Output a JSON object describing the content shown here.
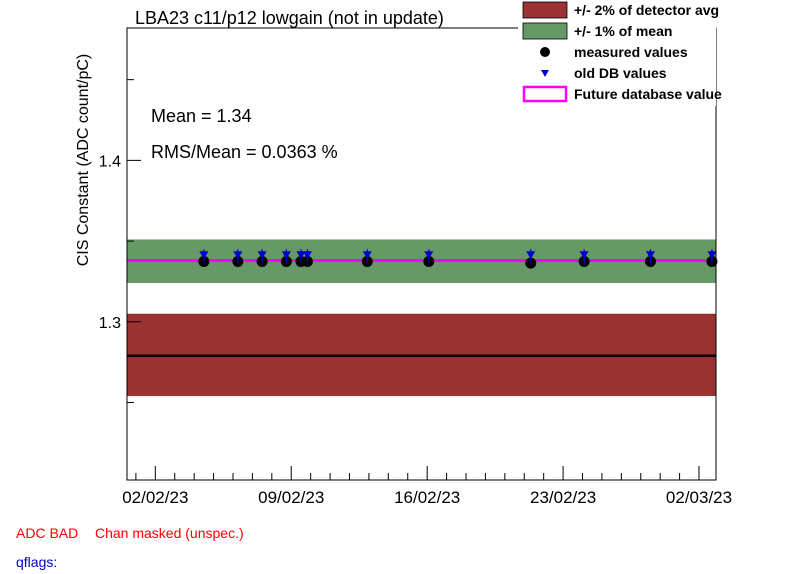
{
  "chart_data": {
    "type": "scatter",
    "title": "LBA23 c11/p12 lowgain (not in update)",
    "ylabel": "CIS Constant (ADC count/pC)",
    "xlabel": "",
    "xlim": [
      "2023-01-31T13:00",
      "2023-03-02T21:00"
    ],
    "ylim": [
      1.202,
      1.482
    ],
    "x_ticks": [
      "02/02/23",
      "09/02/23",
      "16/02/23",
      "23/02/23",
      "02/03/23"
    ],
    "x_tick_dates": [
      "2023-02-02",
      "2023-02-09",
      "2023-02-16",
      "2023-02-23",
      "2023-03-02"
    ],
    "y_ticks": [
      1.3,
      1.4
    ],
    "y_tick_labels": [
      "1.3",
      "1.4"
    ],
    "bands": [
      {
        "name": "+/- 2% of detector avg",
        "center": 1.279,
        "low": 1.254,
        "high": 1.305,
        "color": "#993333"
      },
      {
        "name": "+/- 1% of mean",
        "center": 1.338,
        "low": 1.324,
        "high": 1.351,
        "color": "#669966"
      }
    ],
    "series": [
      {
        "name": "measured values",
        "marker": "circle",
        "color": "#000000",
        "x": [
          "2023-02-04T12:00",
          "2023-02-06T06:00",
          "2023-02-07T12:00",
          "2023-02-08T18:00",
          "2023-02-09T12:00",
          "2023-02-09T20:00",
          "2023-02-12T22:00",
          "2023-02-16T02:00",
          "2023-02-21T08:00",
          "2023-02-24T02:00",
          "2023-02-27T12:00",
          "2023-03-02T16:00"
        ],
        "y": [
          1.338,
          1.338,
          1.338,
          1.338,
          1.338,
          1.338,
          1.338,
          1.338,
          1.337,
          1.338,
          1.338,
          1.338
        ]
      },
      {
        "name": "old DB values",
        "marker": "triangle-down",
        "color": "#0000cc",
        "x": [
          "2023-02-04T12:00",
          "2023-02-06T06:00",
          "2023-02-07T12:00",
          "2023-02-08T18:00",
          "2023-02-09T12:00",
          "2023-02-09T20:00",
          "2023-02-12T22:00",
          "2023-02-16T02:00",
          "2023-02-21T08:00",
          "2023-02-24T02:00",
          "2023-02-27T12:00",
          "2023-03-02T16:00"
        ],
        "y": [
          1.34,
          1.34,
          1.34,
          1.34,
          1.34,
          1.34,
          1.34,
          1.34,
          1.34,
          1.34,
          1.34,
          1.34
        ]
      }
    ],
    "lines": [
      {
        "name": "Future database value",
        "y": 1.338,
        "color": "#ff00ff"
      },
      {
        "name": "detector average",
        "y": 1.279,
        "color": "#000000"
      }
    ],
    "legend": {
      "placement": "top-right",
      "entries": [
        {
          "label": "+/- 2% of detector avg",
          "kind": "box",
          "color": "#993333"
        },
        {
          "label": "+/- 1% of mean",
          "kind": "box",
          "color": "#669966"
        },
        {
          "label": "measured values",
          "kind": "circle",
          "color": "#000000"
        },
        {
          "label": "old DB values",
          "kind": "triangle-down",
          "color": "#0000cc"
        },
        {
          "label": "Future database value",
          "kind": "outline",
          "color": "#ff00ff"
        }
      ]
    },
    "annotations": [
      "Mean = 1.34",
      "RMS/Mean = 0.0363 %"
    ],
    "grid": false
  },
  "status": {
    "adc_bad": "ADC BAD",
    "adc_bad_color": "#ff0000",
    "chan_masked": "Chan masked (unspec.)",
    "chan_masked_color": "#ff0000",
    "qflags": "qflags:",
    "qflags_color": "#0000cc"
  }
}
